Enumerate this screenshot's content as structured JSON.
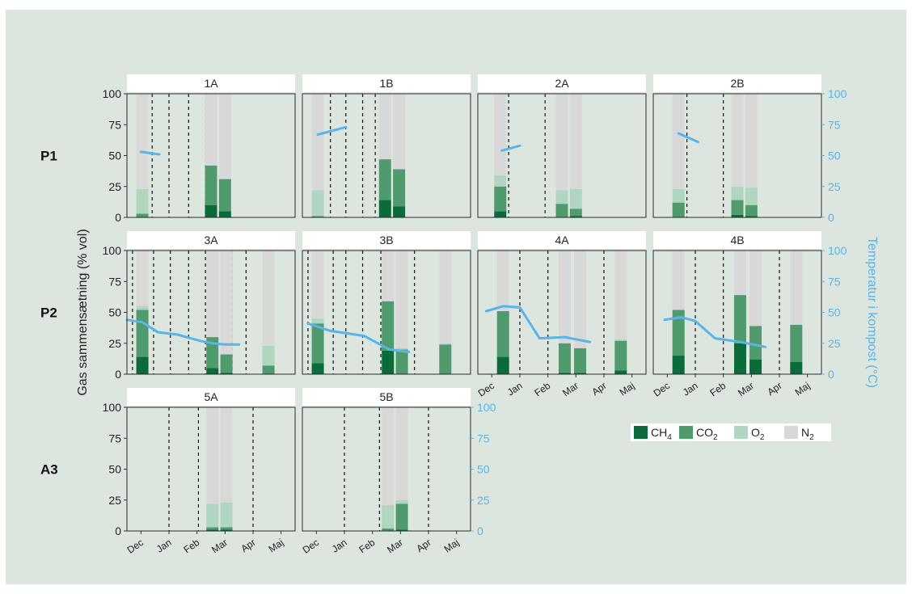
{
  "chart_data": {
    "type": "bar",
    "description": "Faceted stacked-bar chart of gas composition (% vol) in compost with compost temperature overlaid as a line",
    "ylabel": "Gas sammensætning (% vol)",
    "ylabel2": "Temperatur i kompost (°C)",
    "ylim": [
      0,
      100
    ],
    "ylim2": [
      0,
      100
    ],
    "yticks": [
      0,
      25,
      50,
      75,
      100
    ],
    "xlim_months": [
      0,
      6
    ],
    "month_ticks": [
      "Dec",
      "Jan",
      "Feb",
      "Mar",
      "Apr",
      "Maj"
    ],
    "rows": [
      "P1",
      "P2",
      "A3"
    ],
    "legend": {
      "position": "bottom-right",
      "items": [
        {
          "key": "ch4",
          "base": "CH",
          "sub": "4"
        },
        {
          "key": "co2",
          "base": "CO",
          "sub": "2"
        },
        {
          "key": "o2",
          "base": "O",
          "sub": "2"
        },
        {
          "key": "n2",
          "base": "N",
          "sub": "2"
        }
      ]
    },
    "colors": {
      "background": "#dce6df",
      "panel_border": "#2b2b2b",
      "strip": "#ffffff",
      "ch4": "#0b6b3a",
      "co2": "#4f9b6e",
      "o2": "#b0d6c2",
      "n2": "#d8d8d8",
      "temperature": "#5ab4e8",
      "axis2": "#5ab4e8"
    },
    "panels": [
      {
        "title": "1A",
        "row": 0,
        "col": 0,
        "xticks": false,
        "right_axis": false,
        "dashed_lines": [
          0.9,
          1.5,
          2.2,
          2.8
        ],
        "bars": [
          {
            "x": 0.55,
            "ch4": 0,
            "co2": 3,
            "o2": 20,
            "n2": 77
          },
          {
            "x": 3.0,
            "ch4": 10,
            "co2": 32,
            "o2": 0,
            "n2": 58
          },
          {
            "x": 3.5,
            "ch4": 5,
            "co2": 26,
            "o2": 0,
            "n2": 69
          }
        ],
        "temperature": [
          {
            "x": 0.5,
            "y": 53
          },
          {
            "x": 1.15,
            "y": 51
          }
        ]
      },
      {
        "title": "1B",
        "row": 0,
        "col": 1,
        "xticks": false,
        "right_axis": false,
        "dashed_lines": [
          1.0,
          1.55,
          2.15,
          2.6
        ],
        "bars": [
          {
            "x": 0.55,
            "ch4": 0,
            "co2": 1,
            "o2": 21,
            "n2": 78
          },
          {
            "x": 2.95,
            "ch4": 14,
            "co2": 33,
            "o2": 0,
            "n2": 53
          },
          {
            "x": 3.45,
            "ch4": 9,
            "co2": 30,
            "o2": 0,
            "n2": 61
          }
        ],
        "temperature": [
          {
            "x": 0.55,
            "y": 67
          },
          {
            "x": 1.55,
            "y": 73
          }
        ]
      },
      {
        "title": "2A",
        "row": 0,
        "col": 2,
        "xticks": false,
        "right_axis": false,
        "dashed_lines": [
          1.1,
          2.4
        ],
        "bars": [
          {
            "x": 0.8,
            "ch4": 5,
            "co2": 20,
            "o2": 9,
            "n2": 66
          },
          {
            "x": 3.0,
            "ch4": 0,
            "co2": 11,
            "o2": 11,
            "n2": 78
          },
          {
            "x": 3.5,
            "ch4": 1,
            "co2": 6,
            "o2": 16,
            "n2": 77
          }
        ],
        "temperature": [
          {
            "x": 0.85,
            "y": 54
          },
          {
            "x": 1.5,
            "y": 58
          }
        ]
      },
      {
        "title": "2B",
        "row": 0,
        "col": 3,
        "xticks": false,
        "right_axis": true,
        "dashed_lines": [
          1.2,
          2.5
        ],
        "bars": [
          {
            "x": 0.9,
            "ch4": 0,
            "co2": 12,
            "o2": 11,
            "n2": 77
          },
          {
            "x": 3.0,
            "ch4": 2,
            "co2": 12,
            "o2": 11,
            "n2": 75
          },
          {
            "x": 3.5,
            "ch4": 1,
            "co2": 9,
            "o2": 14,
            "n2": 76
          }
        ],
        "temperature": [
          {
            "x": 0.9,
            "y": 68
          },
          {
            "x": 1.6,
            "y": 61
          }
        ]
      },
      {
        "title": "3A",
        "row": 1,
        "col": 0,
        "xticks": false,
        "right_axis": false,
        "dashed_lines": [
          0.2,
          0.95,
          1.55,
          2.2,
          2.8,
          3.75,
          4.25
        ],
        "bars": [
          {
            "x": 0.55,
            "ch4": 14,
            "co2": 38,
            "o2": 3,
            "n2": 45
          },
          {
            "x": 3.05,
            "ch4": 5,
            "co2": 25,
            "o2": 0,
            "n2": 70
          },
          {
            "x": 3.55,
            "ch4": 1,
            "co2": 15,
            "o2": 0,
            "n2": 84
          },
          {
            "x": 5.05,
            "ch4": 0,
            "co2": 7,
            "o2": 16,
            "n2": 77
          }
        ],
        "temperature": [
          {
            "x": 0.0,
            "y": 44
          },
          {
            "x": 0.55,
            "y": 42
          },
          {
            "x": 1.1,
            "y": 34
          },
          {
            "x": 1.8,
            "y": 32
          },
          {
            "x": 2.6,
            "y": 27
          },
          {
            "x": 3.05,
            "y": 25
          },
          {
            "x": 3.5,
            "y": 24
          },
          {
            "x": 4.0,
            "y": 24
          }
        ]
      },
      {
        "title": "3B",
        "row": 1,
        "col": 1,
        "xticks": false,
        "right_axis": false,
        "dashed_lines": [
          0.2,
          1.1,
          1.55,
          2.15,
          2.8,
          3.45,
          4.0
        ],
        "bars": [
          {
            "x": 0.55,
            "ch4": 9,
            "co2": 32,
            "o2": 4,
            "n2": 55
          },
          {
            "x": 3.05,
            "ch4": 19,
            "co2": 40,
            "o2": 0,
            "n2": 41
          },
          {
            "x": 3.55,
            "ch4": 0,
            "co2": 20,
            "o2": 1,
            "n2": 79
          },
          {
            "x": 5.1,
            "ch4": 0,
            "co2": 24,
            "o2": 1,
            "n2": 75
          }
        ],
        "temperature": [
          {
            "x": 0.2,
            "y": 41
          },
          {
            "x": 1.0,
            "y": 35
          },
          {
            "x": 2.2,
            "y": 31
          },
          {
            "x": 3.1,
            "y": 20
          },
          {
            "x": 3.8,
            "y": 18
          }
        ]
      },
      {
        "title": "4A",
        "row": 1,
        "col": 2,
        "xticks": true,
        "right_axis": false,
        "dashed_lines": [
          1.5,
          2.5,
          4.5
        ],
        "bars": [
          {
            "x": 0.9,
            "ch4": 14,
            "co2": 37,
            "o2": 0,
            "n2": 49
          },
          {
            "x": 3.1,
            "ch4": 1,
            "co2": 24,
            "o2": 0,
            "n2": 75
          },
          {
            "x": 3.65,
            "ch4": 1,
            "co2": 20,
            "o2": 0,
            "n2": 79
          },
          {
            "x": 5.1,
            "ch4": 3,
            "co2": 24,
            "o2": 1,
            "n2": 72
          }
        ],
        "temperature": [
          {
            "x": 0.3,
            "y": 51
          },
          {
            "x": 0.9,
            "y": 55
          },
          {
            "x": 1.5,
            "y": 54
          },
          {
            "x": 2.2,
            "y": 29
          },
          {
            "x": 3.1,
            "y": 30
          },
          {
            "x": 4.0,
            "y": 26
          }
        ]
      },
      {
        "title": "4B",
        "row": 1,
        "col": 3,
        "xticks": true,
        "right_axis": true,
        "dashed_lines": [
          1.5,
          2.5,
          4.5
        ],
        "bars": [
          {
            "x": 0.9,
            "ch4": 15,
            "co2": 37,
            "o2": 0,
            "n2": 48
          },
          {
            "x": 3.1,
            "ch4": 25,
            "co2": 39,
            "o2": 0,
            "n2": 36
          },
          {
            "x": 3.65,
            "ch4": 12,
            "co2": 27,
            "o2": 0,
            "n2": 61
          },
          {
            "x": 5.1,
            "ch4": 10,
            "co2": 30,
            "o2": 0,
            "n2": 60
          }
        ],
        "temperature": [
          {
            "x": 0.4,
            "y": 44
          },
          {
            "x": 1.0,
            "y": 46
          },
          {
            "x": 1.5,
            "y": 43
          },
          {
            "x": 2.2,
            "y": 29
          },
          {
            "x": 3.1,
            "y": 26
          },
          {
            "x": 4.0,
            "y": 22
          }
        ]
      },
      {
        "title": "5A",
        "row": 2,
        "col": 0,
        "xticks": true,
        "right_axis": false,
        "dashed_lines": [
          1.5,
          2.55,
          4.5
        ],
        "bars": [
          {
            "x": 3.05,
            "ch4": 1,
            "co2": 2,
            "o2": 19,
            "n2": 78
          },
          {
            "x": 3.55,
            "ch4": 1,
            "co2": 2,
            "o2": 20,
            "n2": 77
          }
        ],
        "temperature": []
      },
      {
        "title": "5B",
        "row": 2,
        "col": 1,
        "xticks": true,
        "right_axis": true,
        "dashed_lines": [
          1.5,
          2.75,
          4.5
        ],
        "bars": [
          {
            "x": 3.05,
            "ch4": 0,
            "co2": 2,
            "o2": 19,
            "n2": 79
          },
          {
            "x": 3.55,
            "ch4": 1,
            "co2": 21,
            "o2": 3,
            "n2": 75
          }
        ],
        "temperature": []
      }
    ]
  }
}
